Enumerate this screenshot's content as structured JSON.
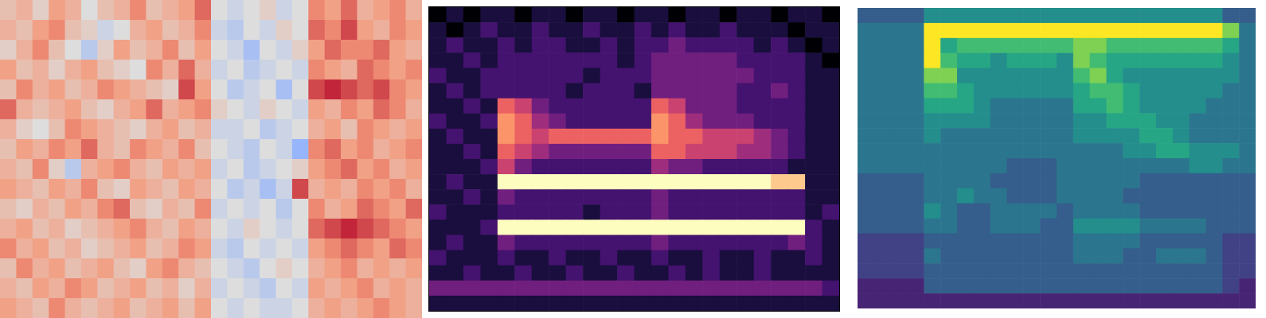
{
  "chart_data": [
    {
      "type": "heatmap",
      "color": "coolwarm",
      "tick_labels": false,
      "zlim": [
        -9,
        9
      ],
      "cells": [
        [
          2,
          3,
          1,
          4,
          3,
          0,
          2,
          3,
          5,
          2,
          3,
          4,
          6,
          0,
          -1,
          0,
          1,
          -1,
          0,
          5,
          4,
          6,
          3,
          4,
          5,
          3
        ],
        [
          3,
          2,
          4,
          5,
          2,
          1,
          -1,
          0,
          3,
          4,
          2,
          3,
          5,
          -1,
          -2,
          0,
          -1,
          1,
          0,
          6,
          5,
          7,
          4,
          3,
          5,
          4
        ],
        [
          1,
          3,
          5,
          2,
          0,
          -2,
          1,
          4,
          2,
          3,
          5,
          2,
          4,
          0,
          -1,
          -3,
          0,
          -1,
          1,
          4,
          6,
          5,
          5,
          6,
          4,
          3
        ],
        [
          4,
          2,
          3,
          1,
          3,
          4,
          2,
          1,
          0,
          5,
          3,
          6,
          3,
          -1,
          0,
          -2,
          -1,
          0,
          -1,
          5,
          4,
          3,
          6,
          5,
          4,
          5
        ],
        [
          2,
          5,
          3,
          4,
          2,
          3,
          5,
          4,
          3,
          2,
          1,
          7,
          4,
          0,
          -2,
          -1,
          0,
          -3,
          0,
          7,
          8,
          7,
          6,
          7,
          5,
          4
        ],
        [
          6,
          3,
          2,
          3,
          4,
          2,
          1,
          3,
          4,
          6,
          3,
          4,
          5,
          1,
          0,
          -1,
          1,
          0,
          -1,
          4,
          3,
          5,
          4,
          6,
          5,
          3
        ],
        [
          3,
          1,
          0,
          2,
          5,
          4,
          3,
          2,
          1,
          3,
          4,
          2,
          3,
          -1,
          -1,
          0,
          -2,
          -1,
          0,
          3,
          4,
          2,
          5,
          4,
          3,
          4
        ],
        [
          2,
          4,
          3,
          5,
          4,
          6,
          3,
          2,
          5,
          4,
          3,
          5,
          2,
          0,
          -1,
          -2,
          0,
          -1,
          -4,
          5,
          6,
          4,
          5,
          3,
          4,
          5
        ],
        [
          3,
          2,
          5,
          1,
          -2,
          3,
          4,
          5,
          3,
          2,
          4,
          3,
          4,
          -1,
          0,
          -2,
          -1,
          0,
          1,
          4,
          5,
          6,
          4,
          5,
          3,
          4
        ],
        [
          4,
          3,
          2,
          4,
          3,
          5,
          2,
          1,
          4,
          3,
          2,
          4,
          3,
          0,
          -2,
          -1,
          -3,
          -1,
          7,
          3,
          4,
          3,
          5,
          4,
          5,
          3
        ],
        [
          2,
          1,
          3,
          2,
          4,
          3,
          5,
          6,
          2,
          1,
          3,
          2,
          5,
          -1,
          0,
          -1,
          0,
          -2,
          0,
          5,
          3,
          4,
          6,
          5,
          4,
          6
        ],
        [
          3,
          4,
          2,
          3,
          1,
          2,
          3,
          4,
          5,
          3,
          2,
          4,
          3,
          0,
          -1,
          1,
          0,
          -1,
          0,
          6,
          7,
          8,
          7,
          6,
          5,
          4
        ],
        [
          5,
          3,
          4,
          2,
          3,
          1,
          2,
          3,
          4,
          2,
          3,
          5,
          4,
          -1,
          -2,
          0,
          -1,
          0,
          -1,
          4,
          5,
          6,
          5,
          4,
          6,
          5
        ],
        [
          2,
          5,
          3,
          4,
          2,
          3,
          4,
          2,
          1,
          4,
          5,
          3,
          2,
          0,
          -1,
          -2,
          0,
          1,
          0,
          3,
          4,
          5,
          3,
          4,
          3,
          4
        ],
        [
          3,
          2,
          4,
          3,
          5,
          4,
          2,
          3,
          4,
          2,
          3,
          1,
          3,
          -1,
          0,
          -1,
          -2,
          0,
          -1,
          4,
          3,
          4,
          5,
          3,
          4,
          3
        ],
        [
          4,
          3,
          2,
          5,
          3,
          2,
          3,
          4,
          2,
          3,
          4,
          2,
          4,
          0,
          -1,
          0,
          -1,
          -1,
          0,
          3,
          4,
          3,
          4,
          5,
          4,
          3
        ]
      ]
    },
    {
      "type": "heatmap",
      "color": "magma",
      "tick_labels": false,
      "zlim": [
        0,
        9
      ],
      "cells": [
        [
          0,
          1,
          0,
          1,
          1,
          0,
          1,
          1,
          0,
          1,
          1,
          0,
          1,
          1,
          0,
          1,
          1,
          0,
          1,
          1,
          0,
          1,
          1,
          0
        ],
        [
          1,
          0,
          1,
          2,
          1,
          1,
          2,
          1,
          1,
          2,
          1,
          1,
          2,
          1,
          2,
          1,
          1,
          2,
          1,
          1,
          1,
          0,
          1,
          1
        ],
        [
          1,
          2,
          1,
          1,
          2,
          1,
          2,
          2,
          1,
          1,
          2,
          1,
          2,
          2,
          3,
          2,
          2,
          2,
          2,
          1,
          2,
          1,
          0,
          1
        ],
        [
          1,
          1,
          2,
          1,
          2,
          2,
          2,
          2,
          2,
          2,
          2,
          1,
          2,
          3,
          3,
          3,
          3,
          3,
          2,
          2,
          2,
          2,
          1,
          0
        ],
        [
          2,
          1,
          1,
          2,
          2,
          2,
          2,
          2,
          2,
          1,
          2,
          2,
          2,
          3,
          3,
          3,
          3,
          3,
          3,
          2,
          2,
          2,
          1,
          1
        ],
        [
          1,
          2,
          1,
          2,
          2,
          2,
          2,
          2,
          1,
          2,
          2,
          2,
          1,
          3,
          3,
          3,
          3,
          3,
          2,
          2,
          3,
          2,
          1,
          1
        ],
        [
          1,
          1,
          2,
          1,
          6,
          5,
          3,
          2,
          2,
          2,
          2,
          2,
          2,
          6,
          5,
          3,
          3,
          3,
          2,
          2,
          2,
          2,
          1,
          1
        ],
        [
          2,
          1,
          1,
          2,
          7,
          6,
          4,
          3,
          2,
          2,
          2,
          2,
          2,
          7,
          6,
          4,
          3,
          3,
          3,
          2,
          2,
          2,
          1,
          1
        ],
        [
          1,
          2,
          1,
          1,
          7,
          6,
          5,
          6,
          6,
          6,
          6,
          6,
          6,
          7,
          6,
          6,
          5,
          5,
          5,
          4,
          3,
          2,
          1,
          1
        ],
        [
          1,
          1,
          2,
          1,
          6,
          5,
          4,
          3,
          3,
          3,
          3,
          3,
          3,
          6,
          6,
          5,
          5,
          5,
          4,
          4,
          3,
          2,
          1,
          1
        ],
        [
          1,
          1,
          1,
          2,
          5,
          3,
          2,
          2,
          2,
          2,
          2,
          2,
          2,
          4,
          3,
          3,
          2,
          2,
          2,
          2,
          2,
          1,
          1,
          1
        ],
        [
          1,
          2,
          1,
          1,
          9,
          9,
          9,
          9,
          9,
          9,
          9,
          9,
          9,
          9,
          9,
          9,
          9,
          9,
          9,
          9,
          8,
          8,
          1,
          1
        ],
        [
          1,
          1,
          2,
          1,
          3,
          2,
          2,
          2,
          2,
          2,
          2,
          2,
          2,
          3,
          2,
          2,
          2,
          2,
          2,
          2,
          2,
          2,
          1,
          1
        ],
        [
          2,
          1,
          1,
          1,
          2,
          2,
          2,
          2,
          2,
          1,
          2,
          2,
          2,
          3,
          2,
          2,
          2,
          2,
          2,
          2,
          2,
          2,
          1,
          2
        ],
        [
          1,
          1,
          1,
          2,
          9,
          9,
          9,
          9,
          9,
          9,
          9,
          9,
          9,
          9,
          9,
          9,
          9,
          9,
          9,
          9,
          9,
          9,
          2,
          1
        ],
        [
          1,
          2,
          1,
          1,
          3,
          2,
          2,
          2,
          2,
          2,
          2,
          2,
          2,
          3,
          2,
          2,
          2,
          2,
          2,
          2,
          2,
          3,
          2,
          1
        ],
        [
          2,
          1,
          1,
          1,
          2,
          1,
          1,
          2,
          1,
          1,
          2,
          1,
          1,
          2,
          1,
          1,
          2,
          1,
          1,
          2,
          1,
          1,
          2,
          1
        ],
        [
          1,
          1,
          2,
          1,
          1,
          2,
          1,
          1,
          2,
          1,
          1,
          2,
          1,
          1,
          2,
          1,
          2,
          1,
          1,
          2,
          1,
          1,
          1,
          1
        ],
        [
          3,
          3,
          3,
          3,
          3,
          3,
          3,
          3,
          3,
          3,
          3,
          3,
          3,
          3,
          3,
          3,
          3,
          3,
          3,
          3,
          3,
          3,
          3,
          2
        ],
        [
          1,
          1,
          1,
          1,
          1,
          1,
          1,
          1,
          1,
          1,
          1,
          1,
          1,
          1,
          1,
          1,
          1,
          1,
          1,
          1,
          1,
          1,
          1,
          1
        ]
      ]
    },
    {
      "type": "heatmap",
      "color": "viridis",
      "tick_labels": false,
      "zlim": [
        0,
        9
      ],
      "cells": [
        [
          3,
          3,
          3,
          3,
          5,
          5,
          5,
          5,
          5,
          5,
          5,
          5,
          5,
          5,
          5,
          5,
          5,
          5,
          5,
          5,
          5,
          5,
          3,
          3
        ],
        [
          4,
          4,
          4,
          4,
          9,
          9,
          9,
          9,
          9,
          9,
          9,
          9,
          9,
          9,
          9,
          9,
          9,
          9,
          9,
          9,
          9,
          9,
          8,
          4
        ],
        [
          4,
          4,
          4,
          4,
          9,
          6,
          7,
          7,
          7,
          7,
          7,
          7,
          7,
          8,
          8,
          7,
          7,
          7,
          7,
          7,
          7,
          7,
          6,
          4
        ],
        [
          4,
          4,
          4,
          4,
          9,
          7,
          6,
          6,
          5,
          6,
          6,
          6,
          5,
          8,
          7,
          6,
          6,
          6,
          6,
          6,
          6,
          6,
          5,
          4
        ],
        [
          4,
          4,
          4,
          4,
          8,
          8,
          5,
          5,
          5,
          5,
          5,
          5,
          5,
          7,
          8,
          6,
          5,
          5,
          5,
          5,
          5,
          5,
          5,
          4
        ],
        [
          4,
          4,
          4,
          4,
          7,
          7,
          6,
          5,
          5,
          5,
          5,
          5,
          5,
          6,
          7,
          7,
          6,
          5,
          5,
          5,
          5,
          5,
          4,
          4
        ],
        [
          4,
          4,
          4,
          4,
          6,
          6,
          6,
          5,
          4,
          4,
          4,
          4,
          4,
          6,
          6,
          7,
          6,
          5,
          5,
          5,
          5,
          4,
          4,
          4
        ],
        [
          4,
          4,
          4,
          4,
          5,
          5,
          5,
          5,
          4,
          4,
          4,
          4,
          4,
          5,
          5,
          6,
          6,
          6,
          5,
          5,
          4,
          4,
          4,
          4
        ],
        [
          4,
          4,
          4,
          4,
          5,
          4,
          4,
          4,
          4,
          4,
          4,
          4,
          4,
          5,
          5,
          5,
          5,
          6,
          6,
          5,
          4,
          4,
          4,
          4
        ],
        [
          4,
          4,
          4,
          4,
          4,
          4,
          4,
          4,
          4,
          4,
          4,
          4,
          4,
          4,
          4,
          4,
          5,
          5,
          6,
          6,
          5,
          5,
          5,
          4
        ],
        [
          4,
          4,
          4,
          4,
          4,
          4,
          4,
          4,
          4,
          3,
          3,
          3,
          4,
          4,
          4,
          4,
          4,
          4,
          4,
          4,
          5,
          5,
          4,
          4
        ],
        [
          3,
          3,
          3,
          3,
          4,
          4,
          4,
          4,
          3,
          3,
          3,
          3,
          4,
          4,
          4,
          4,
          4,
          3,
          3,
          3,
          3,
          3,
          3,
          3
        ],
        [
          3,
          3,
          3,
          3,
          4,
          4,
          5,
          4,
          4,
          3,
          3,
          3,
          4,
          4,
          4,
          4,
          3,
          3,
          3,
          3,
          3,
          3,
          3,
          3
        ],
        [
          3,
          3,
          3,
          3,
          5,
          4,
          3,
          3,
          4,
          4,
          4,
          4,
          3,
          4,
          4,
          4,
          4,
          3,
          3,
          3,
          3,
          3,
          3,
          3
        ],
        [
          3,
          3,
          3,
          3,
          4,
          4,
          3,
          3,
          4,
          4,
          4,
          3,
          3,
          5,
          5,
          5,
          5,
          4,
          4,
          4,
          4,
          3,
          3,
          3
        ],
        [
          2,
          2,
          2,
          2,
          3,
          3,
          3,
          3,
          3,
          3,
          3,
          3,
          3,
          4,
          4,
          4,
          4,
          3,
          3,
          3,
          3,
          3,
          2,
          2
        ],
        [
          2,
          2,
          2,
          2,
          4,
          3,
          3,
          3,
          3,
          3,
          3,
          3,
          3,
          4,
          4,
          4,
          3,
          3,
          4,
          4,
          4,
          3,
          2,
          2
        ],
        [
          2,
          2,
          2,
          2,
          3,
          3,
          3,
          3,
          3,
          3,
          3,
          3,
          3,
          3,
          3,
          3,
          3,
          3,
          3,
          3,
          3,
          3,
          2,
          2
        ],
        [
          1,
          1,
          1,
          1,
          3,
          3,
          3,
          3,
          3,
          3,
          3,
          3,
          3,
          3,
          3,
          3,
          3,
          3,
          3,
          3,
          3,
          3,
          2,
          1
        ],
        [
          1,
          1,
          1,
          1,
          1,
          1,
          1,
          1,
          1,
          1,
          1,
          1,
          1,
          1,
          1,
          1,
          1,
          1,
          1,
          1,
          1,
          1,
          1,
          1
        ]
      ]
    }
  ]
}
